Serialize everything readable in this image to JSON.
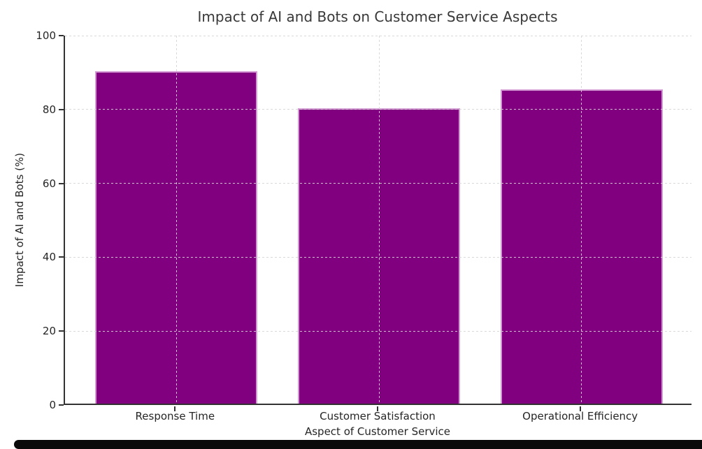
{
  "chart_data": {
    "type": "bar",
    "title": "Impact of AI and Bots on Customer Service Aspects",
    "xlabel": "Aspect of Customer Service",
    "ylabel": "Impact of AI and Bots (%)",
    "categories": [
      "Response Time",
      "Customer Satisfaction",
      "Operational Efficiency"
    ],
    "values": [
      90,
      80,
      85
    ],
    "ylim": [
      0,
      100
    ],
    "yticks": [
      0,
      20,
      40,
      60,
      80,
      100
    ],
    "grid": "dashed, horizontal and vertical, drawn above bars",
    "legend": "none",
    "colors": {
      "bar_fill": "#800080",
      "bar_edge": "#e1b4e1",
      "gridline": "#d5d5d5",
      "spine": "#333333",
      "text": "#262626",
      "background": "#ffffff"
    }
  },
  "page": {
    "bottom_bar_color": "#0a0a0a"
  }
}
